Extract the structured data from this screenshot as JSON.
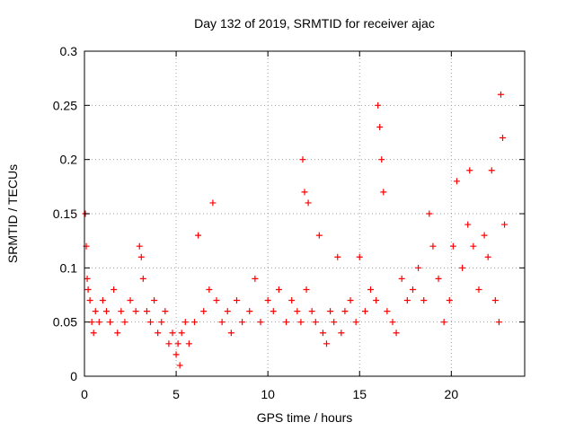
{
  "chart_data": {
    "type": "scatter",
    "title": "Day 132 of 2019, SRMTID for receiver ajac",
    "xlabel": "GPS time / hours",
    "ylabel": "SRMTID / TECUs",
    "xlim": [
      0,
      24
    ],
    "ylim": [
      0,
      0.3
    ],
    "grid": true,
    "marker": "+",
    "series_color": "#ff0000",
    "x_ticks": [
      0,
      5,
      10,
      15,
      20
    ],
    "x_tick_labels": [
      "0",
      "5",
      "10",
      "15",
      "20"
    ],
    "y_ticks": [
      0,
      0.05,
      0.1,
      0.15,
      0.2,
      0.25,
      0.3
    ],
    "y_tick_labels": [
      "0",
      "0.05",
      "0.1",
      "0.15",
      "0.2",
      "0.25",
      "0.3"
    ],
    "points": {
      "x": [
        0.05,
        0.1,
        0.15,
        0.2,
        0.3,
        0.4,
        0.5,
        0.6,
        0.8,
        1.0,
        1.2,
        1.4,
        1.6,
        1.8,
        2.0,
        2.2,
        2.5,
        2.8,
        3.0,
        3.1,
        3.2,
        3.4,
        3.6,
        3.8,
        4.0,
        4.2,
        4.4,
        4.6,
        4.8,
        5.0,
        5.1,
        5.2,
        5.3,
        5.5,
        5.7,
        6.0,
        6.2,
        6.5,
        6.8,
        7.0,
        7.2,
        7.5,
        7.8,
        8.0,
        8.3,
        8.6,
        9.0,
        9.3,
        9.6,
        10.0,
        10.3,
        10.6,
        11.0,
        11.3,
        11.6,
        11.8,
        11.9,
        12.0,
        12.1,
        12.2,
        12.4,
        12.6,
        12.8,
        13.0,
        13.2,
        13.4,
        13.6,
        13.8,
        14.0,
        14.2,
        14.5,
        14.8,
        15.0,
        15.3,
        15.6,
        15.9,
        16.0,
        16.1,
        16.2,
        16.3,
        16.5,
        16.8,
        17.0,
        17.3,
        17.6,
        17.9,
        18.2,
        18.5,
        18.8,
        19.0,
        19.3,
        19.6,
        19.9,
        20.1,
        20.3,
        20.6,
        20.9,
        21.0,
        21.2,
        21.5,
        21.8,
        22.0,
        22.2,
        22.4,
        22.6,
        22.7,
        22.8,
        22.9
      ],
      "y": [
        0.15,
        0.12,
        0.09,
        0.08,
        0.07,
        0.05,
        0.04,
        0.06,
        0.05,
        0.07,
        0.06,
        0.05,
        0.08,
        0.04,
        0.06,
        0.05,
        0.07,
        0.06,
        0.12,
        0.11,
        0.09,
        0.06,
        0.05,
        0.07,
        0.04,
        0.05,
        0.06,
        0.03,
        0.04,
        0.02,
        0.03,
        0.01,
        0.04,
        0.05,
        0.03,
        0.05,
        0.13,
        0.06,
        0.08,
        0.16,
        0.07,
        0.05,
        0.06,
        0.04,
        0.07,
        0.05,
        0.06,
        0.09,
        0.05,
        0.07,
        0.06,
        0.08,
        0.05,
        0.07,
        0.06,
        0.05,
        0.2,
        0.17,
        0.08,
        0.16,
        0.06,
        0.05,
        0.13,
        0.04,
        0.03,
        0.06,
        0.05,
        0.11,
        0.04,
        0.06,
        0.07,
        0.05,
        0.11,
        0.06,
        0.08,
        0.07,
        0.25,
        0.23,
        0.2,
        0.17,
        0.06,
        0.05,
        0.04,
        0.09,
        0.07,
        0.08,
        0.1,
        0.07,
        0.15,
        0.12,
        0.09,
        0.05,
        0.07,
        0.12,
        0.18,
        0.1,
        0.14,
        0.19,
        0.12,
        0.08,
        0.13,
        0.11,
        0.19,
        0.07,
        0.05,
        0.26,
        0.22,
        0.14
      ]
    }
  }
}
